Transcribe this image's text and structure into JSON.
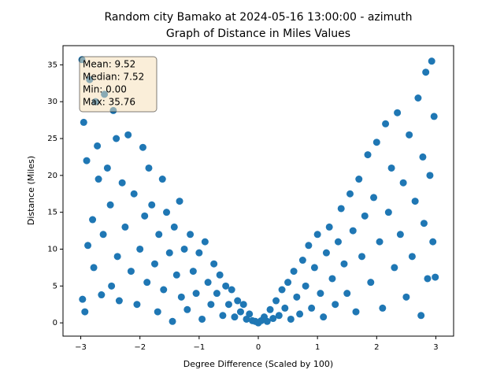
{
  "chart_data": {
    "type": "scatter",
    "title": [
      "Random city Bamako at 2024-05-16 13:00:00  - azimuth",
      "Graph of Distance in Miles Values"
    ],
    "xlabel": "Degree Difference (Scaled by 100)",
    "ylabel": "Distance (Miles)",
    "annotation": [
      "Mean: 9.52",
      "Median: 7.52",
      "Min: 0.00",
      "Max: 35.76"
    ],
    "color": "#1f77b4",
    "xlim": [
      -3.3,
      3.3
    ],
    "ylim": [
      -1.8,
      37.6
    ],
    "xticks": [
      {
        "value": -3,
        "label": "−3"
      },
      {
        "value": -2,
        "label": "−2"
      },
      {
        "value": -1,
        "label": "−1"
      },
      0,
      1,
      2,
      3
    ],
    "yticks": [
      0,
      5,
      10,
      15,
      20,
      25,
      30,
      35
    ],
    "grid": false,
    "series": [
      {
        "name": "azimuth",
        "x": [
          -2.98,
          -2.95,
          -2.97,
          -2.93,
          -2.9,
          -2.88,
          -2.85,
          -2.8,
          -2.78,
          -2.75,
          -2.72,
          -2.7,
          -2.65,
          -2.62,
          -2.6,
          -2.55,
          -2.5,
          -2.48,
          -2.45,
          -2.4,
          -2.38,
          -2.35,
          -2.3,
          -2.25,
          -2.2,
          -2.15,
          -2.1,
          -2.05,
          -2.0,
          -1.95,
          -1.92,
          -1.88,
          -1.85,
          -1.8,
          -1.75,
          -1.7,
          -1.68,
          -1.62,
          -1.6,
          -1.55,
          -1.5,
          -1.45,
          -1.42,
          -1.38,
          -1.33,
          -1.3,
          -1.25,
          -1.2,
          -1.15,
          -1.1,
          -1.05,
          -1.0,
          -0.95,
          -0.9,
          -0.85,
          -0.8,
          -0.75,
          -0.7,
          -0.65,
          -0.6,
          -0.55,
          -0.5,
          -0.45,
          -0.4,
          -0.35,
          -0.3,
          -0.25,
          -0.2,
          -0.15,
          -0.1,
          -0.05,
          0,
          0.05,
          0.1,
          0.15,
          0.2,
          0.25,
          0.3,
          0.35,
          0.4,
          0.45,
          0.5,
          0.55,
          0.6,
          0.65,
          0.7,
          0.75,
          0.8,
          0.85,
          0.9,
          0.95,
          1.0,
          1.05,
          1.1,
          1.15,
          1.2,
          1.25,
          1.3,
          1.35,
          1.4,
          1.45,
          1.5,
          1.55,
          1.6,
          1.65,
          1.7,
          1.75,
          1.8,
          1.85,
          1.9,
          1.95,
          2.0,
          2.05,
          2.1,
          2.15,
          2.2,
          2.25,
          2.3,
          2.35,
          2.4,
          2.45,
          2.5,
          2.55,
          2.6,
          2.65,
          2.7,
          2.75,
          2.78,
          2.8,
          2.83,
          2.86,
          2.9,
          2.93,
          2.95,
          2.97,
          2.99
        ],
        "values": [
          35.7,
          27.2,
          3.2,
          1.5,
          22,
          10.5,
          33,
          14,
          7.5,
          30,
          24,
          19.5,
          3.8,
          12,
          31,
          21,
          16,
          5,
          28.8,
          25,
          9,
          3,
          19,
          13,
          25.5,
          7,
          17.5,
          2.5,
          10,
          23.8,
          14.5,
          5.5,
          21,
          16,
          8,
          1.5,
          12,
          19.5,
          4.5,
          15,
          9.5,
          0.2,
          13,
          6.5,
          16.5,
          3.5,
          10,
          1.8,
          12,
          7,
          4,
          9.5,
          0.5,
          11,
          5.5,
          2.5,
          8,
          4,
          6.5,
          1,
          5,
          2.5,
          4.5,
          0.8,
          3,
          1.5,
          2.5,
          0.5,
          1.2,
          0.3,
          0.2,
          0,
          0.3,
          0.8,
          0.2,
          1.8,
          0.6,
          3,
          1,
          4.5,
          2,
          5.5,
          0.5,
          7,
          3.5,
          1.2,
          8.5,
          5,
          10.5,
          2,
          7.5,
          12,
          4,
          0.8,
          9.5,
          13,
          6,
          2.5,
          11,
          15.5,
          8,
          4,
          17.5,
          12.5,
          1.5,
          19.5,
          9,
          14.5,
          22.8,
          5.5,
          17,
          24.5,
          11,
          2,
          27,
          15,
          21,
          7.5,
          28.5,
          12,
          19,
          3.5,
          25.5,
          9,
          16.5,
          30.5,
          1,
          22.5,
          13.5,
          34,
          6,
          20,
          35.5,
          11,
          28,
          6.2
        ]
      }
    ]
  }
}
